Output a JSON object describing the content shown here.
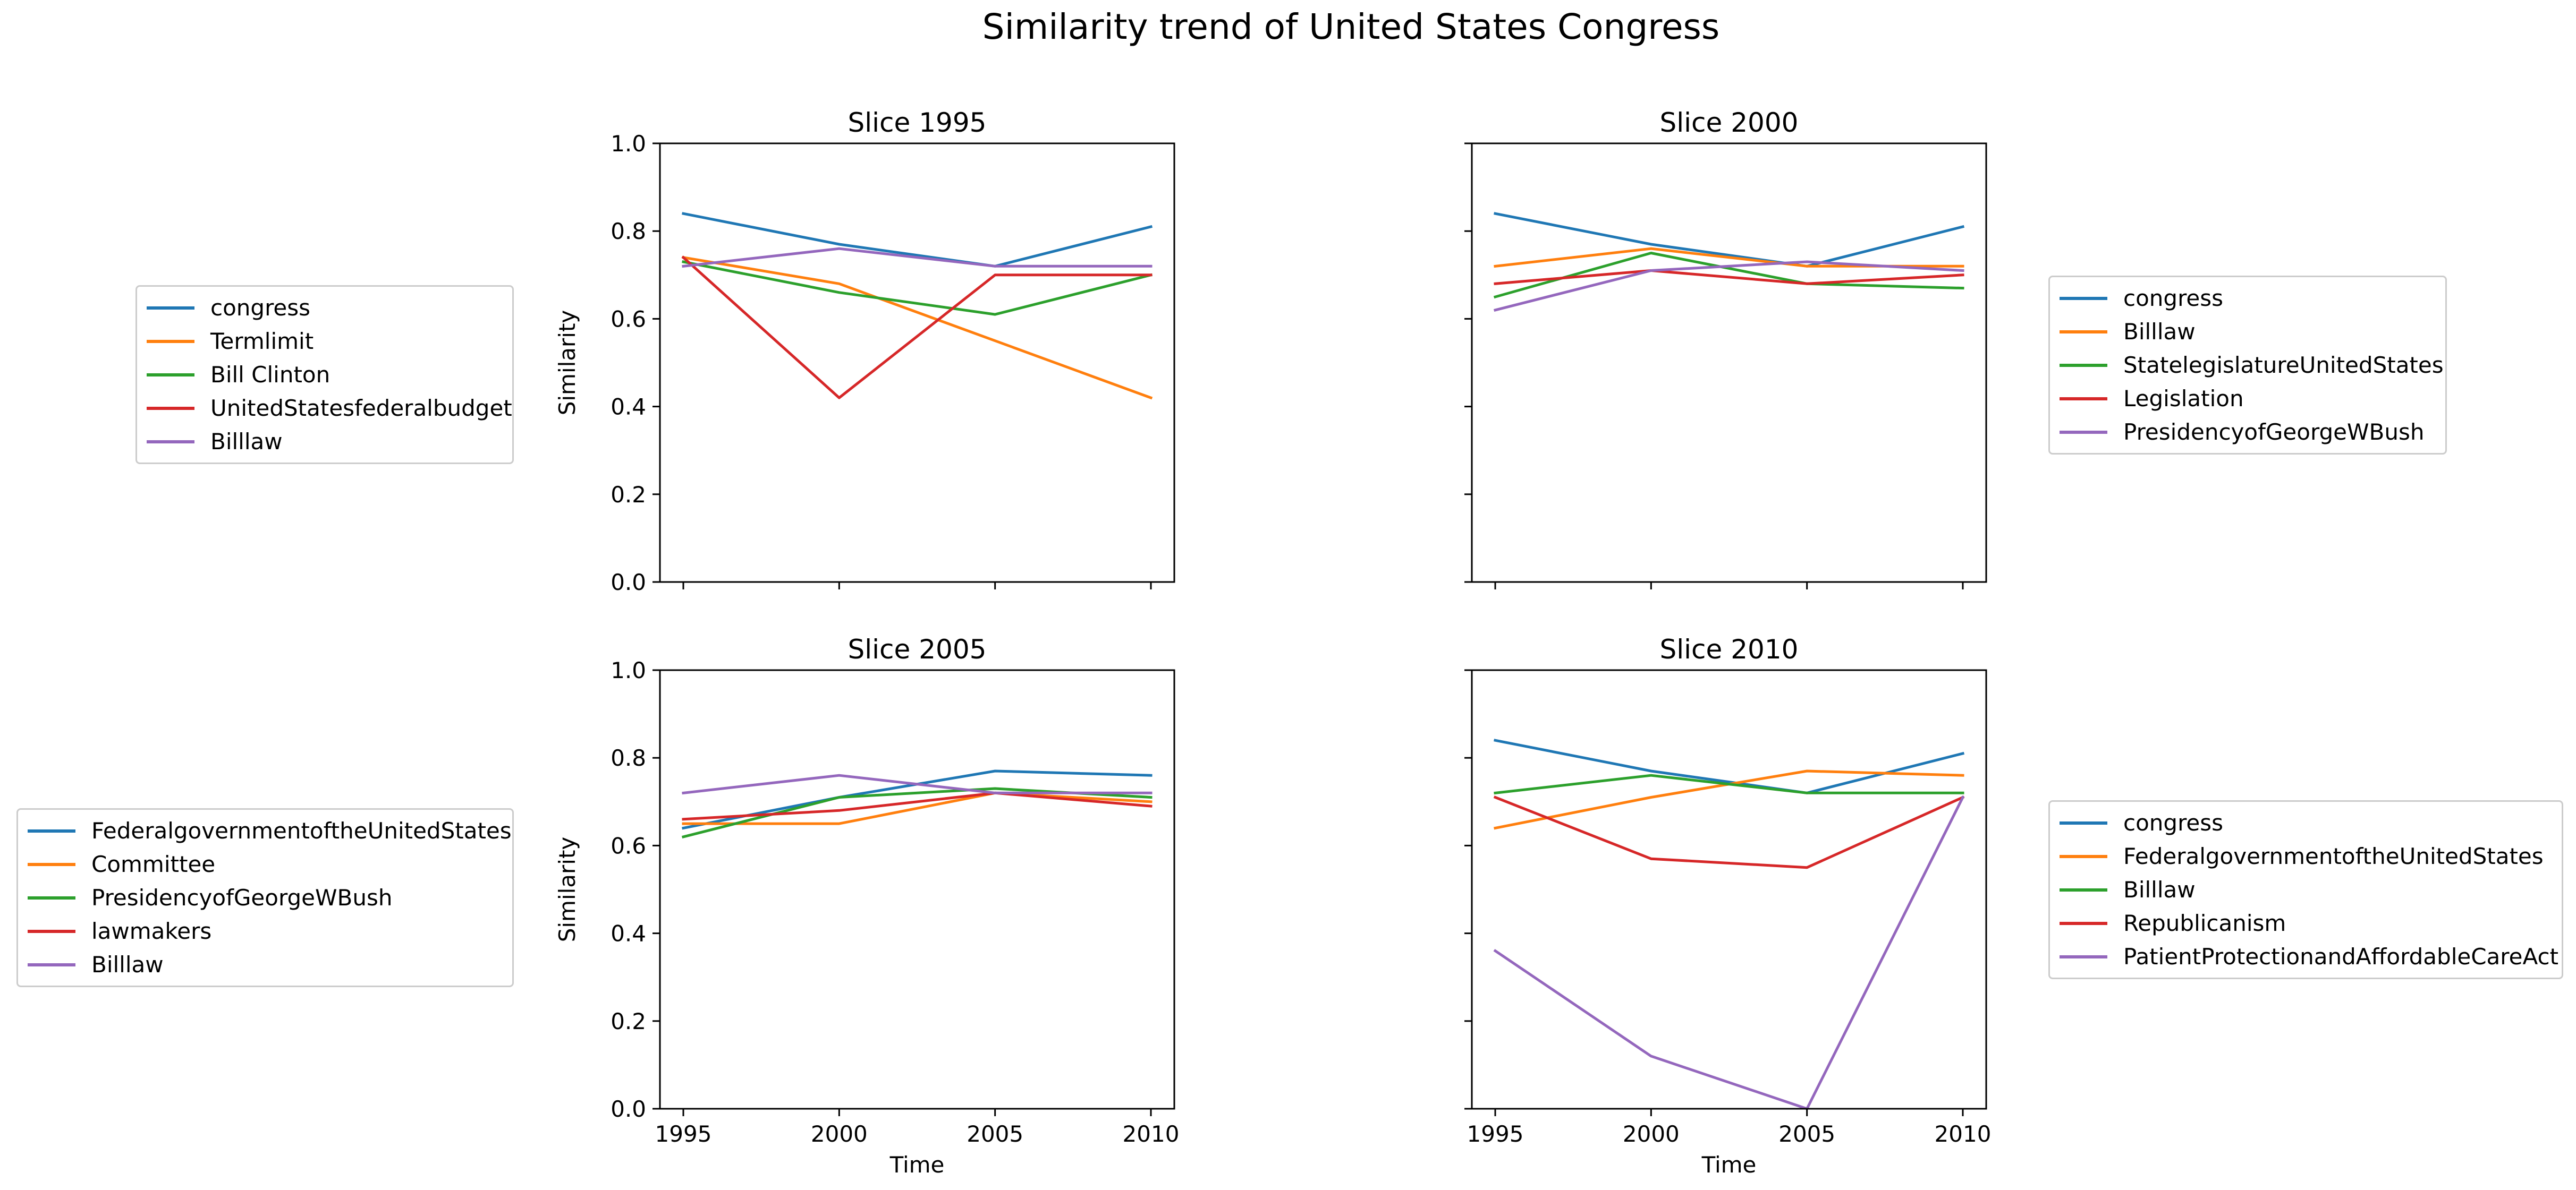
{
  "figure_title": "Similarity trend of United States Congress",
  "colors": {
    "blue": "#1f77b4",
    "orange": "#ff7f0e",
    "green": "#2ca02c",
    "red": "#d62728",
    "purple": "#9467bd"
  },
  "chart_data": [
    {
      "type": "line",
      "title": "Slice 1995",
      "xlabel": "",
      "ylabel": "Similarity",
      "x": [
        1995,
        2000,
        2005,
        2010
      ],
      "ylim": [
        0,
        1
      ],
      "yticks": [
        "0.0",
        "0.2",
        "0.4",
        "0.6",
        "0.8",
        "1.0"
      ],
      "xticks": [],
      "legend_position": "left",
      "series": [
        {
          "name": "congress",
          "color": "#1f77b4",
          "values": [
            0.84,
            0.77,
            0.72,
            0.81
          ]
        },
        {
          "name": "Termlimit",
          "color": "#ff7f0e",
          "values": [
            0.74,
            0.68,
            0.55,
            0.42
          ]
        },
        {
          "name": "Bill Clinton",
          "color": "#2ca02c",
          "values": [
            0.73,
            0.66,
            0.61,
            0.7
          ]
        },
        {
          "name": "UnitedStatesfederalbudget",
          "color": "#d62728",
          "values": [
            0.74,
            0.42,
            0.7,
            0.7
          ]
        },
        {
          "name": "Billlaw",
          "color": "#9467bd",
          "values": [
            0.72,
            0.76,
            0.72,
            0.72
          ]
        }
      ]
    },
    {
      "type": "line",
      "title": "Slice 2000",
      "xlabel": "",
      "ylabel": "",
      "x": [
        1995,
        2000,
        2005,
        2010
      ],
      "ylim": [
        0,
        1
      ],
      "yticks": [],
      "xticks": [],
      "legend_position": "right",
      "series": [
        {
          "name": "congress",
          "color": "#1f77b4",
          "values": [
            0.84,
            0.77,
            0.72,
            0.81
          ]
        },
        {
          "name": "Billlaw",
          "color": "#ff7f0e",
          "values": [
            0.72,
            0.76,
            0.72,
            0.72
          ]
        },
        {
          "name": "StatelegislatureUnitedStates",
          "color": "#2ca02c",
          "values": [
            0.65,
            0.75,
            0.68,
            0.67
          ]
        },
        {
          "name": "Legislation",
          "color": "#d62728",
          "values": [
            0.68,
            0.71,
            0.68,
            0.7
          ]
        },
        {
          "name": "PresidencyofGeorgeWBush",
          "color": "#9467bd",
          "values": [
            0.62,
            0.71,
            0.73,
            0.71
          ]
        }
      ]
    },
    {
      "type": "line",
      "title": "Slice 2005",
      "xlabel": "Time",
      "ylabel": "Similarity",
      "x": [
        1995,
        2000,
        2005,
        2010
      ],
      "ylim": [
        0,
        1
      ],
      "yticks": [
        "0.0",
        "0.2",
        "0.4",
        "0.6",
        "0.8",
        "1.0"
      ],
      "xticks": [
        "1995",
        "2000",
        "2005",
        "2010"
      ],
      "legend_position": "left",
      "series": [
        {
          "name": "FederalgovernmentoftheUnitedStates",
          "color": "#1f77b4",
          "values": [
            0.64,
            0.71,
            0.77,
            0.76
          ]
        },
        {
          "name": "Committee",
          "color": "#ff7f0e",
          "values": [
            0.65,
            0.65,
            0.72,
            0.7
          ]
        },
        {
          "name": "PresidencyofGeorgeWBush",
          "color": "#2ca02c",
          "values": [
            0.62,
            0.71,
            0.73,
            0.71
          ]
        },
        {
          "name": "lawmakers",
          "color": "#d62728",
          "values": [
            0.66,
            0.68,
            0.72,
            0.69
          ]
        },
        {
          "name": "Billlaw",
          "color": "#9467bd",
          "values": [
            0.72,
            0.76,
            0.72,
            0.72
          ]
        }
      ]
    },
    {
      "type": "line",
      "title": "Slice 2010",
      "xlabel": "Time",
      "ylabel": "",
      "x": [
        1995,
        2000,
        2005,
        2010
      ],
      "ylim": [
        0,
        1
      ],
      "yticks": [],
      "xticks": [
        "1995",
        "2000",
        "2005",
        "2010"
      ],
      "legend_position": "right",
      "series": [
        {
          "name": "congress",
          "color": "#1f77b4",
          "values": [
            0.84,
            0.77,
            0.72,
            0.81
          ]
        },
        {
          "name": "FederalgovernmentoftheUnitedStates",
          "color": "#ff7f0e",
          "values": [
            0.64,
            0.71,
            0.77,
            0.76
          ]
        },
        {
          "name": "Billlaw",
          "color": "#2ca02c",
          "values": [
            0.72,
            0.76,
            0.72,
            0.72
          ]
        },
        {
          "name": "Republicanism",
          "color": "#d62728",
          "values": [
            0.71,
            0.57,
            0.55,
            0.71
          ]
        },
        {
          "name": "PatientProtectionandAffordableCareAct",
          "color": "#9467bd",
          "values": [
            0.36,
            0.12,
            0.0,
            0.71
          ]
        }
      ]
    }
  ]
}
